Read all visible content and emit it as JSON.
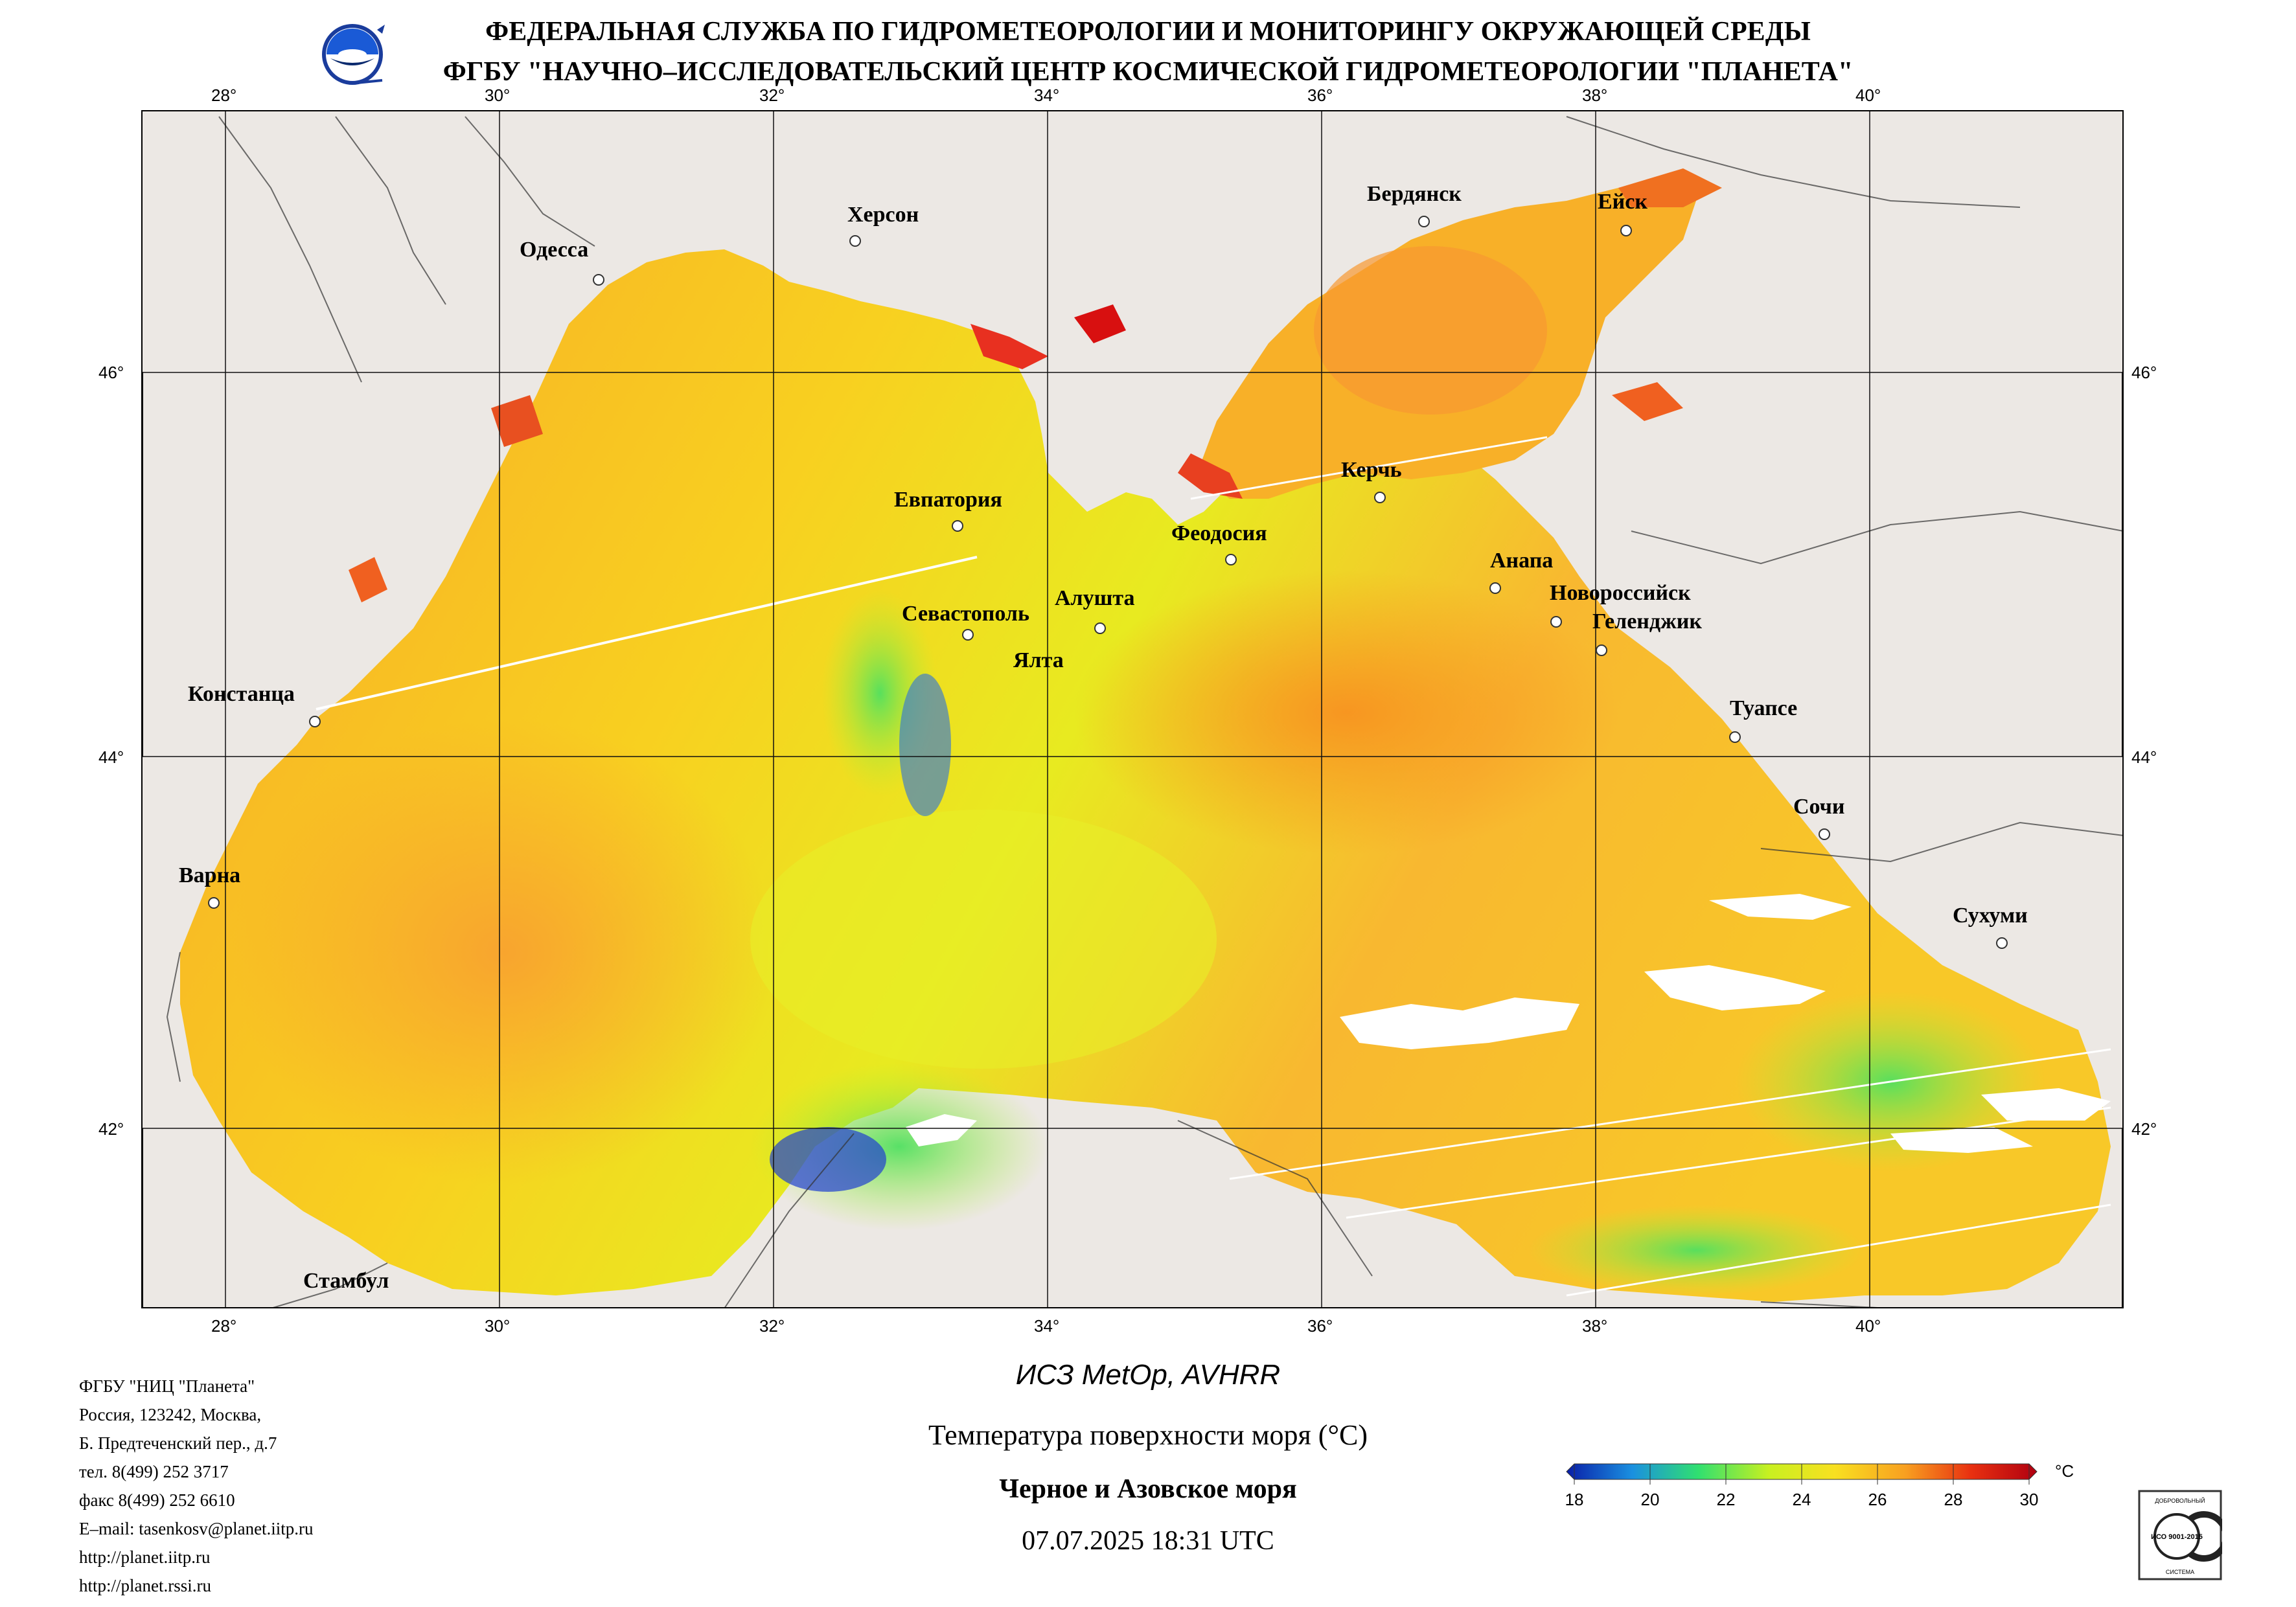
{
  "header": {
    "line1": "ФЕДЕРАЛЬНАЯ СЛУЖБА ПО ГИДРОМЕТЕОРОЛОГИИ И МОНИТОРИНГУ ОКРУЖАЮЩЕЙ СРЕДЫ",
    "line2": "ФГБУ \"НАУЧНО–ИССЛЕДОВАТЕЛЬСКИЙ ЦЕНТР КОСМИЧЕСКОЙ ГИДРОМЕТЕОРОЛОГИИ \"ПЛАНЕТА\""
  },
  "logo_icon": "planeta-globe-logo-icon",
  "map": {
    "lon_labels": [
      "28°",
      "30°",
      "32°",
      "34°",
      "36°",
      "38°",
      "40°"
    ],
    "lat_labels": [
      "46°",
      "44°",
      "42°"
    ],
    "cities": [
      {
        "name": "Одесса"
      },
      {
        "name": "Херсон"
      },
      {
        "name": "Бердянск"
      },
      {
        "name": "Ейск"
      },
      {
        "name": "Керчь"
      },
      {
        "name": "Евпатория"
      },
      {
        "name": "Феодосия"
      },
      {
        "name": "Анапа"
      },
      {
        "name": "Новороссийск"
      },
      {
        "name": "Геленджик"
      },
      {
        "name": "Алушта"
      },
      {
        "name": "Севастополь"
      },
      {
        "name": "Ялта"
      },
      {
        "name": "Констанца"
      },
      {
        "name": "Туапсе"
      },
      {
        "name": "Сочи"
      },
      {
        "name": "Варна"
      },
      {
        "name": "Сухуми"
      },
      {
        "name": "Стамбул"
      }
    ]
  },
  "footer": {
    "org_lines": [
      "ФГБУ \"НИЦ \"Планета\"",
      "Россия, 123242, Москва,",
      "Б. Предтеченский пер., д.7",
      "тел. 8(499) 252 3717",
      "факс 8(499) 252 6610",
      "E–mail: tasenkosv@planet.iitp.ru",
      "http://planet.iitp.ru",
      "http://planet.rssi.ru"
    ],
    "satellite": "ИСЗ MetOp, AVHRR",
    "parameter": "Температура поверхности моря (°C)",
    "region": "Черное и Азовское моря",
    "datetime": "07.07.2025 18:31 UTC"
  },
  "colorbar": {
    "unit": "°C",
    "ticks": [
      "18",
      "20",
      "22",
      "24",
      "26",
      "28",
      "30"
    ],
    "colors": [
      "#0a1ea8",
      "#1aa0e0",
      "#30e070",
      "#c8f020",
      "#f8e020",
      "#f8a020",
      "#e83010",
      "#b00010"
    ]
  },
  "certificate": {
    "top": "ДОБРОВОЛЬНЫЙ",
    "mid": "ИСО 9001-2015",
    "bottom": "СИСТЕМА"
  }
}
